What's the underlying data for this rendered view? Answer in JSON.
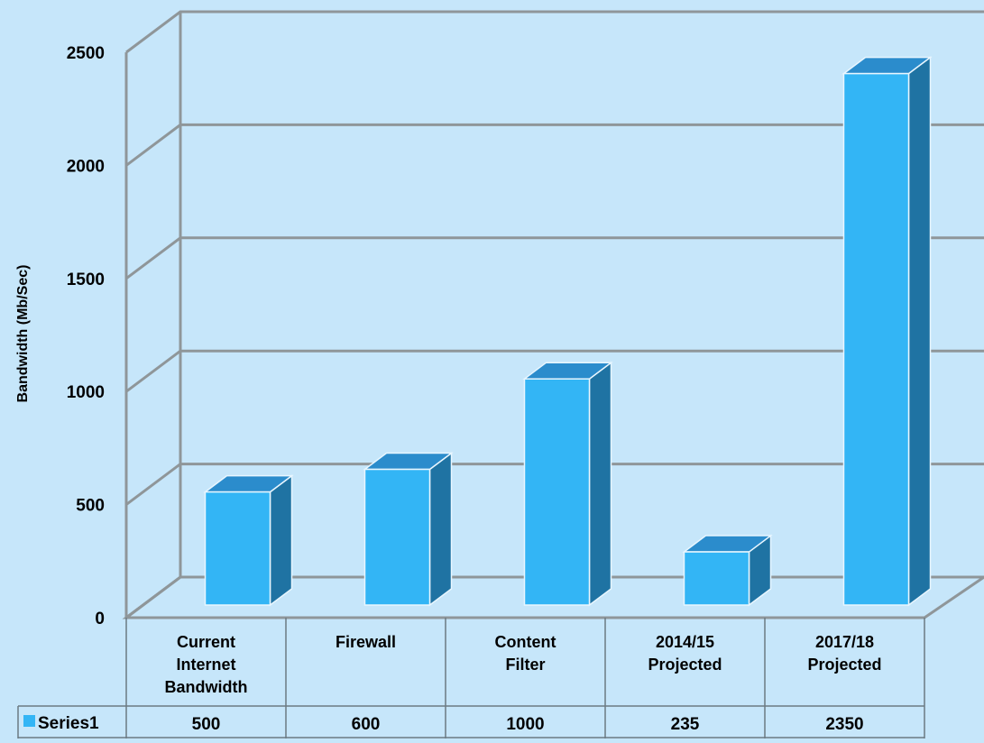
{
  "chart_data": {
    "type": "bar",
    "categories": [
      [
        "Current",
        "Internet",
        "Bandwidth"
      ],
      [
        "Firewall"
      ],
      [
        "Content",
        "Filter"
      ],
      [
        "2014/15",
        "Projected"
      ],
      [
        "2017/18",
        "Projected"
      ]
    ],
    "series": [
      {
        "name": "Series1",
        "values": [
          500,
          600,
          1000,
          235,
          2350
        ]
      }
    ],
    "ylabel": "Bandwidth (Mb/Sec)",
    "ylim": [
      0,
      2500
    ],
    "yticks": [
      0,
      500,
      1000,
      1500,
      2000,
      2500
    ],
    "grid": true,
    "data_table": true,
    "colors": {
      "bar_front": "#33b5f5",
      "bar_top": "#2b8ccc",
      "bar_side": "#1f73a3",
      "bar_edge": "#e8f6ff",
      "grid": "#8f9699",
      "background": "#c6e6fa",
      "legend_key": "#33b5f5"
    }
  }
}
